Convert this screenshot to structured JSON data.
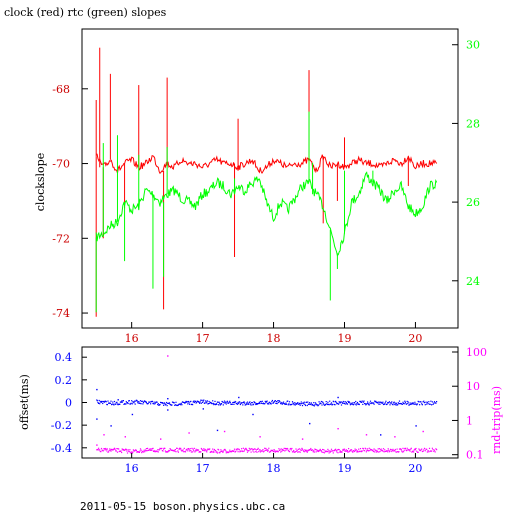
{
  "title": "clock (red) rtc (green) slopes",
  "footer": "2011-05-15  boson.physics.ubc.ca",
  "colors": {
    "clock": "#ff0000",
    "rtc": "#00ff00",
    "offset": "#0000ff",
    "roundtrip": "#ff00ff",
    "axis": "#000000"
  },
  "chart_data": [
    {
      "type": "line",
      "ylabel": "clockslope",
      "xlim": [
        15.3,
        20.6
      ],
      "ylim": [
        -74.4,
        30.4
      ],
      "left_axis": {
        "label": "clockslope",
        "ylim": [
          -74.4,
          -66.4
        ],
        "ticks": [
          -74,
          -72,
          -70,
          -68
        ],
        "tick_labels": [
          "-74",
          "-72",
          "-70",
          "-68"
        ]
      },
      "right_axis": {
        "ylim": [
          22.8,
          30.4
        ],
        "ticks": [
          24,
          26,
          28,
          30
        ],
        "tick_labels": [
          "24",
          "26",
          "28",
          "30"
        ]
      },
      "x_ticks": [
        16,
        17,
        18,
        19,
        20
      ],
      "x_tick_labels": [
        "16",
        "17",
        "18",
        "19",
        "20"
      ],
      "series": [
        {
          "axis": "left",
          "x": [
            15.5,
            15.6,
            15.7,
            15.8,
            15.9,
            16.0,
            16.1,
            16.2,
            16.3,
            16.4,
            16.5,
            16.6,
            16.7,
            16.8,
            16.9,
            17.0,
            17.1,
            17.2,
            17.3,
            17.4,
            17.5,
            17.6,
            17.7,
            17.8,
            17.9,
            18.0,
            18.1,
            18.2,
            18.3,
            18.4,
            18.5,
            18.6,
            18.7,
            18.8,
            18.9,
            19.0,
            19.1,
            19.2,
            19.3,
            19.4,
            19.5,
            19.6,
            19.7,
            19.8,
            19.9,
            20.0,
            20.1,
            20.2,
            20.3
          ],
          "values": [
            -69.8,
            -70.1,
            -69.9,
            -70.2,
            -70.0,
            -69.9,
            -70.1,
            -70.0,
            -69.8,
            -70.2,
            -70.0,
            -70.1,
            -69.9,
            -70.0,
            -70.0,
            -70.1,
            -70.0,
            -69.9,
            -70.0,
            -70.0,
            -70.1,
            -70.0,
            -69.9,
            -70.2,
            -70.1,
            -69.9,
            -70.0,
            -70.1,
            -70.0,
            -70.0,
            -69.9,
            -70.2,
            -69.8,
            -70.1,
            -70.0,
            -70.1,
            -70.0,
            -69.9,
            -70.0,
            -70.0,
            -70.1,
            -70.0,
            -69.9,
            -70.0,
            -69.8,
            -70.1,
            -70.0,
            -70.0,
            -70.0
          ],
          "spikes": [
            [
              15.5,
              -74.1
            ],
            [
              15.5,
              -68.3
            ],
            [
              15.55,
              -66.9
            ],
            [
              15.6,
              -72.0
            ],
            [
              15.7,
              -67.6
            ],
            [
              15.9,
              -71.2
            ],
            [
              16.1,
              -67.9
            ],
            [
              16.45,
              -73.9
            ],
            [
              16.5,
              -67.7
            ],
            [
              17.45,
              -72.5
            ],
            [
              17.5,
              -68.8
            ],
            [
              18.5,
              -67.5
            ],
            [
              18.7,
              -71.6
            ],
            [
              18.9,
              -71.0
            ],
            [
              19.0,
              -69.3
            ],
            [
              19.9,
              -70.6
            ]
          ]
        },
        {
          "axis": "right",
          "x": [
            15.5,
            15.6,
            15.7,
            15.8,
            15.9,
            16.0,
            16.1,
            16.2,
            16.3,
            16.4,
            16.5,
            16.6,
            16.7,
            16.8,
            16.9,
            17.0,
            17.1,
            17.2,
            17.3,
            17.4,
            17.5,
            17.6,
            17.7,
            17.8,
            17.9,
            18.0,
            18.1,
            18.2,
            18.3,
            18.4,
            18.5,
            18.6,
            18.7,
            18.8,
            18.9,
            19.0,
            19.1,
            19.2,
            19.3,
            19.4,
            19.5,
            19.6,
            19.7,
            19.8,
            19.9,
            20.0,
            20.1,
            20.2,
            20.3
          ],
          "values": [
            25.1,
            25.2,
            25.4,
            25.5,
            26.0,
            25.8,
            25.9,
            26.3,
            26.2,
            26.0,
            26.2,
            26.3,
            26.1,
            26.0,
            25.9,
            26.2,
            26.3,
            26.5,
            26.4,
            26.2,
            26.4,
            26.3,
            26.5,
            26.6,
            26.0,
            25.6,
            26.0,
            25.8,
            26.1,
            26.4,
            26.5,
            26.2,
            25.9,
            25.3,
            24.7,
            25.2,
            26.0,
            26.2,
            26.7,
            26.5,
            26.3,
            26.0,
            26.3,
            26.4,
            25.9,
            25.7,
            25.9,
            26.4,
            26.5
          ],
          "spikes": [
            [
              15.5,
              23.2
            ],
            [
              15.6,
              27.5
            ],
            [
              15.8,
              27.7
            ],
            [
              15.9,
              24.5
            ],
            [
              16.1,
              27.2
            ],
            [
              16.3,
              23.8
            ],
            [
              16.45,
              24.1
            ],
            [
              16.5,
              27.4
            ],
            [
              17.45,
              26.6
            ],
            [
              18.5,
              28.3
            ],
            [
              18.55,
              27.0
            ],
            [
              18.8,
              23.5
            ],
            [
              18.9,
              24.3
            ],
            [
              19.0,
              26.8
            ],
            [
              19.4,
              26.8
            ]
          ]
        }
      ]
    },
    {
      "type": "scatter",
      "xlim": [
        15.3,
        20.6
      ],
      "left_axis": {
        "label": "offset(ms)",
        "ylim": [
          -0.49,
          0.49
        ],
        "ticks": [
          -0.4,
          -0.2,
          0,
          0.2,
          0.4
        ],
        "tick_labels": [
          "-0.4",
          "-0.2",
          "0",
          "0.2",
          "0.4"
        ]
      },
      "right_axis": {
        "label": "rnd-trip(ms)",
        "scale": "log",
        "ylim": [
          0.08,
          140
        ],
        "ticks": [
          0.1,
          1,
          10,
          100
        ],
        "tick_labels": [
          "0.1",
          "1",
          "10",
          "100"
        ]
      },
      "x_ticks": [
        16,
        17,
        18,
        19,
        20
      ],
      "x_tick_labels": [
        "16",
        "17",
        "18",
        "19",
        "20"
      ],
      "series": [
        {
          "axis": "left",
          "x": [
            15.5,
            15.75,
            16.0,
            16.25,
            16.5,
            16.75,
            17.0,
            17.25,
            17.5,
            17.75,
            18.0,
            18.25,
            18.5,
            18.75,
            19.0,
            19.25,
            19.5,
            19.75,
            20.0,
            20.3
          ],
          "values": [
            0.01,
            0.0,
            0.01,
            0.0,
            -0.01,
            0.0,
            0.01,
            0.0,
            0.0,
            0.0,
            0.01,
            0.0,
            -0.01,
            0.0,
            0.0,
            0.0,
            0.0,
            0.0,
            0.0,
            0.0
          ],
          "outliers": [
            [
              15.5,
              0.12
            ],
            [
              15.5,
              -0.14
            ],
            [
              15.7,
              -0.2
            ],
            [
              15.8,
              0.03
            ],
            [
              16.0,
              -0.1
            ],
            [
              16.5,
              -0.06
            ],
            [
              16.5,
              0.04
            ],
            [
              17.0,
              -0.05
            ],
            [
              17.2,
              -0.24
            ],
            [
              17.5,
              0.05
            ],
            [
              17.7,
              -0.1
            ],
            [
              18.5,
              -0.18
            ],
            [
              18.9,
              0.05
            ],
            [
              19.5,
              -0.28
            ],
            [
              20.0,
              -0.2
            ]
          ]
        },
        {
          "axis": "right",
          "x": [
            15.5,
            15.75,
            16.0,
            16.25,
            16.5,
            16.75,
            17.0,
            17.25,
            17.5,
            17.75,
            18.0,
            18.25,
            18.5,
            18.75,
            19.0,
            19.25,
            19.5,
            19.75,
            20.0,
            20.3
          ],
          "values": [
            0.14,
            0.14,
            0.13,
            0.14,
            0.14,
            0.14,
            0.14,
            0.13,
            0.14,
            0.14,
            0.14,
            0.14,
            0.14,
            0.13,
            0.14,
            0.14,
            0.14,
            0.14,
            0.14,
            0.14
          ],
          "outliers": [
            [
              15.5,
              0.2
            ],
            [
              15.6,
              0.4
            ],
            [
              15.9,
              0.35
            ],
            [
              16.4,
              0.3
            ],
            [
              16.5,
              80
            ],
            [
              16.8,
              0.45
            ],
            [
              17.3,
              0.5
            ],
            [
              17.8,
              0.35
            ],
            [
              18.4,
              0.3
            ],
            [
              18.9,
              0.6
            ],
            [
              19.3,
              0.4
            ],
            [
              19.7,
              0.35
            ],
            [
              20.1,
              0.5
            ]
          ]
        }
      ]
    }
  ]
}
